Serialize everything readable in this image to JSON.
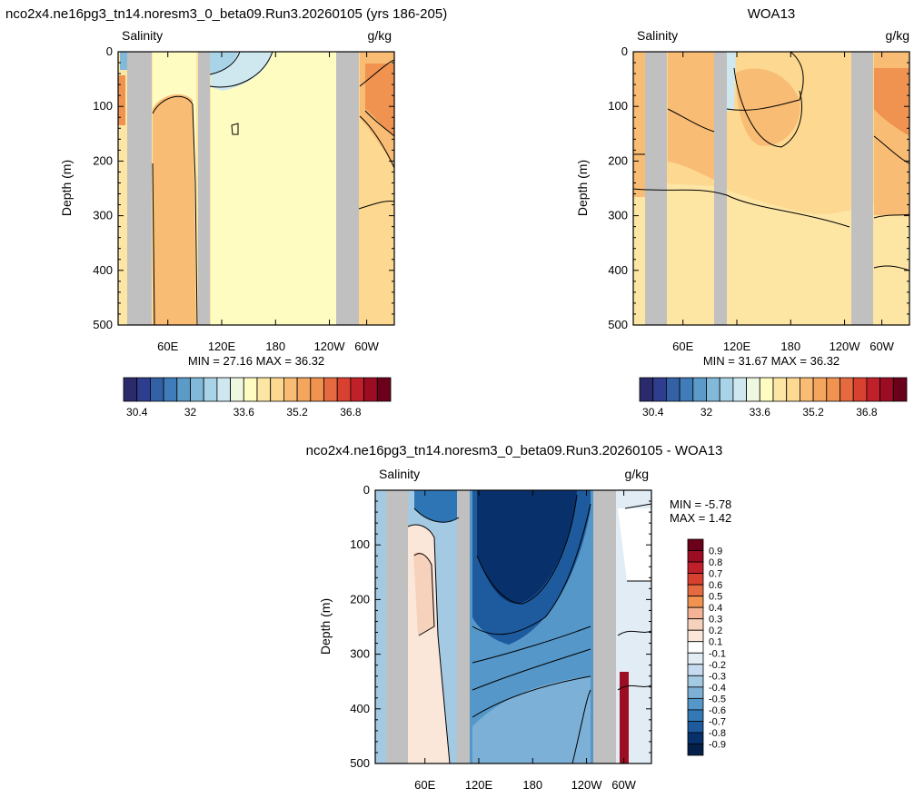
{
  "chart_data": [
    {
      "type": "heatmap",
      "title": "nco2x4.ne16pg3_tn14.noresm3_0_beta09.Run3.20260105 (yrs 186-205)",
      "left_label": "Salinity",
      "right_label": "g/kg",
      "ylabel": "Depth (m)",
      "yticks": [
        0,
        100,
        200,
        300,
        400,
        500
      ],
      "ylim": [
        0,
        500
      ],
      "xticks": [
        "60E",
        "120E",
        "180",
        "120W",
        "60W"
      ],
      "stats": "MIN =  27.16  MAX =  36.32",
      "colorbar_labels": [
        "30.4",
        "32",
        "33.6",
        "35.2",
        "36.8"
      ],
      "colors": [
        "#fffcc2",
        "#fcd890",
        "#f8bc75",
        "#f09350",
        "#dcb8a0"
      ]
    },
    {
      "type": "heatmap",
      "title": "WOA13",
      "left_label": "Salinity",
      "right_label": "g/kg",
      "ylabel": "Depth (m)",
      "yticks": [
        0,
        100,
        200,
        300,
        400,
        500
      ],
      "ylim": [
        0,
        500
      ],
      "xticks": [
        "60E",
        "120E",
        "180",
        "120W",
        "60W"
      ],
      "stats": "MIN =  31.67  MAX =  36.32",
      "colorbar_labels": [
        "30.4",
        "32",
        "33.6",
        "35.2",
        "36.8"
      ],
      "colors": [
        "#fde5a4",
        "#fcd890",
        "#f8bc75",
        "#f09350"
      ]
    },
    {
      "type": "heatmap",
      "title": "nco2x4.ne16pg3_tn14.noresm3_0_beta09.Run3.20260105 - WOA13",
      "left_label": "Salinity",
      "right_label": "g/kg",
      "ylabel": "Depth (m)",
      "yticks": [
        0,
        100,
        200,
        300,
        400,
        500
      ],
      "ylim": [
        0,
        500
      ],
      "xticks": [
        "60E",
        "120E",
        "180",
        "120W",
        "60W"
      ],
      "stats_min": "MIN = -5.78",
      "stats_max": "MAX =  1.42",
      "colorbar_labels": [
        "0.9",
        "0.8",
        "0.7",
        "0.6",
        "0.5",
        "0.4",
        "0.3",
        "0.2",
        "0.1",
        "-0.1",
        "-0.2",
        "-0.3",
        "-0.4",
        "-0.5",
        "-0.6",
        "-0.7",
        "-0.8",
        "-0.9"
      ],
      "colors": [
        "#08306b",
        "#1d5a9e",
        "#2e75b5",
        "#4a8fc6",
        "#f6d2bc",
        "#fbe7da"
      ]
    }
  ],
  "palette_main": [
    "#2b2a6b",
    "#2e3d8e",
    "#3460a6",
    "#3f7cb9",
    "#5c9ac8",
    "#82b9d9",
    "#a9d3e6",
    "#cfe8ef",
    "#eef7e0",
    "#fffcc2",
    "#fde5a4",
    "#fcd890",
    "#f8bc75",
    "#f4a55e",
    "#f09350",
    "#e66a3f",
    "#d8402f",
    "#c0202a",
    "#9c0d24",
    "#6a0019"
  ],
  "palette_diff": [
    "#6a0019",
    "#9c0d24",
    "#c0202a",
    "#d8402f",
    "#e66a3f",
    "#f09350",
    "#f4b394",
    "#f6d2bc",
    "#fbe7da",
    "#ffffff",
    "#e1ecf5",
    "#c6dbef",
    "#a3c9e3",
    "#7cb0d6",
    "#5597c8",
    "#3279b5",
    "#1d5a9e",
    "#08306b"
  ],
  "land_color": "#c0c0c0"
}
